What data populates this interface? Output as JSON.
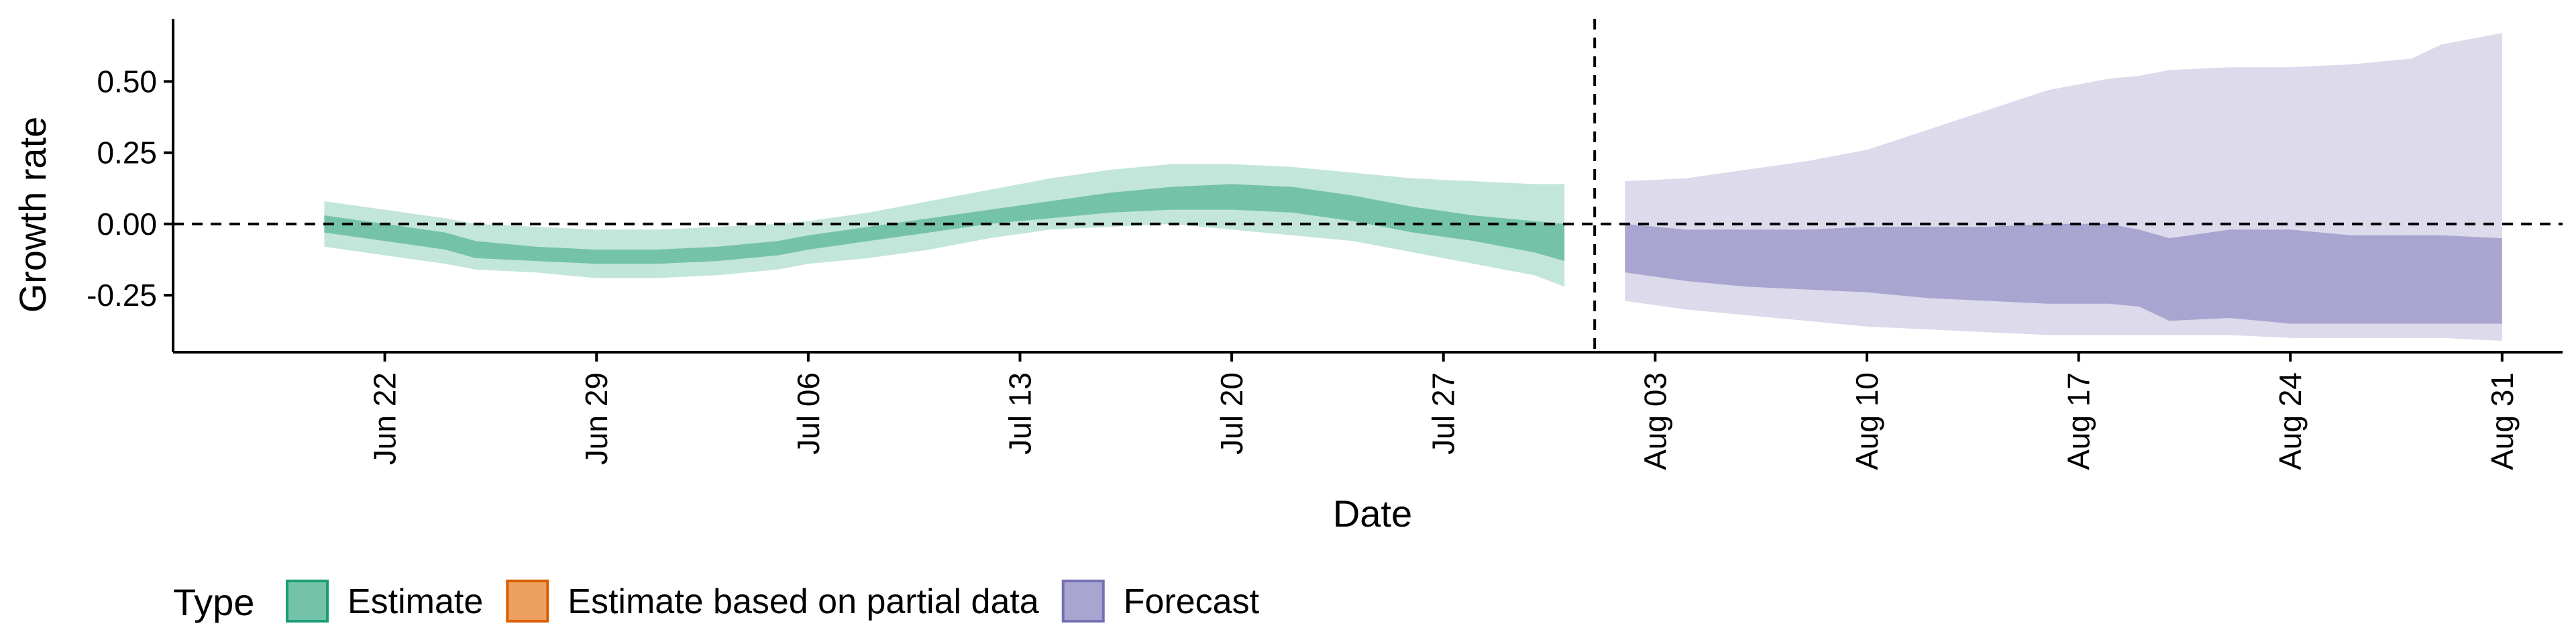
{
  "chart_data": {
    "type": "area",
    "xlabel": "Date",
    "ylabel": "Growth rate",
    "ylim": [
      -0.45,
      0.72
    ],
    "xlim": [
      "2020-06-15",
      "2020-09-02"
    ],
    "grid": false,
    "legend_position": "bottom-left",
    "legend_title": "Type",
    "y_ticks": [
      {
        "value": -0.25,
        "label": "-0.25"
      },
      {
        "value": 0,
        "label": "0.00"
      },
      {
        "value": 0.25,
        "label": "0.25"
      },
      {
        "value": 0.5,
        "label": "0.50"
      }
    ],
    "x_ticks": [
      {
        "date": "2020-06-22",
        "label": "Jun 22"
      },
      {
        "date": "2020-06-29",
        "label": "Jun 29"
      },
      {
        "date": "2020-07-06",
        "label": "Jul 06"
      },
      {
        "date": "2020-07-13",
        "label": "Jul 13"
      },
      {
        "date": "2020-07-20",
        "label": "Jul 20"
      },
      {
        "date": "2020-07-27",
        "label": "Jul 27"
      },
      {
        "date": "2020-08-03",
        "label": "Aug 03"
      },
      {
        "date": "2020-08-10",
        "label": "Aug 10"
      },
      {
        "date": "2020-08-17",
        "label": "Aug 17"
      },
      {
        "date": "2020-08-24",
        "label": "Aug 24"
      },
      {
        "date": "2020-08-31",
        "label": "Aug 31"
      }
    ],
    "reference_lines": {
      "horizontal_y": 0,
      "vertical_date": "2020-08-01"
    },
    "legend": [
      {
        "label": "Estimate",
        "fill": "#74c3a8",
        "stroke": "#1b9e77"
      },
      {
        "label": "Estimate based on partial data",
        "fill": "#eea061",
        "stroke": "#d95f02"
      },
      {
        "label": "Forecast",
        "fill": "#a9a5d1",
        "stroke": "#7570b3"
      }
    ],
    "series": [
      {
        "type_label": "Estimate",
        "outer_color": "#c3e6da",
        "inner_color": "#74c3a8",
        "x": [
          "2020-06-20",
          "2020-06-22",
          "2020-06-24",
          "2020-06-25",
          "2020-06-27",
          "2020-06-29",
          "2020-07-01",
          "2020-07-03",
          "2020-07-05",
          "2020-07-06",
          "2020-07-08",
          "2020-07-10",
          "2020-07-12",
          "2020-07-14",
          "2020-07-16",
          "2020-07-18",
          "2020-07-20",
          "2020-07-22",
          "2020-07-24",
          "2020-07-26",
          "2020-07-28",
          "2020-07-30",
          "2020-07-31"
        ],
        "lower90": [
          -0.08,
          -0.11,
          -0.14,
          -0.16,
          -0.17,
          -0.19,
          -0.19,
          -0.18,
          -0.16,
          -0.14,
          -0.12,
          -0.09,
          -0.05,
          -0.02,
          -0.01,
          0.0,
          -0.02,
          -0.04,
          -0.06,
          -0.1,
          -0.14,
          -0.18,
          -0.22
        ],
        "lower50": [
          -0.03,
          -0.06,
          -0.09,
          -0.12,
          -0.13,
          -0.14,
          -0.14,
          -0.13,
          -0.11,
          -0.09,
          -0.06,
          -0.03,
          0.0,
          0.02,
          0.04,
          0.05,
          0.05,
          0.04,
          0.01,
          -0.03,
          -0.06,
          -0.1,
          -0.13
        ],
        "upper50": [
          0.03,
          0.0,
          -0.03,
          -0.06,
          -0.08,
          -0.09,
          -0.09,
          -0.08,
          -0.06,
          -0.04,
          -0.01,
          0.02,
          0.05,
          0.08,
          0.11,
          0.13,
          0.14,
          0.13,
          0.1,
          0.06,
          0.03,
          0.01,
          0.0
        ],
        "upper90": [
          0.08,
          0.05,
          0.02,
          0.0,
          -0.01,
          -0.02,
          -0.02,
          -0.01,
          0.0,
          0.01,
          0.04,
          0.08,
          0.12,
          0.16,
          0.19,
          0.21,
          0.21,
          0.2,
          0.18,
          0.16,
          0.15,
          0.14,
          0.14
        ]
      },
      {
        "type_label": "Forecast",
        "outer_color": "#dcdaeb",
        "inner_color": "#a9a5d1",
        "x": [
          "2020-08-02",
          "2020-08-04",
          "2020-08-06",
          "2020-08-08",
          "2020-08-10",
          "2020-08-12",
          "2020-08-14",
          "2020-08-16",
          "2020-08-18",
          "2020-08-19",
          "2020-08-20",
          "2020-08-22",
          "2020-08-24",
          "2020-08-26",
          "2020-08-28",
          "2020-08-29",
          "2020-08-31"
        ],
        "lower90": [
          -0.27,
          -0.3,
          -0.32,
          -0.34,
          -0.36,
          -0.37,
          -0.38,
          -0.39,
          -0.39,
          -0.39,
          -0.39,
          -0.39,
          -0.4,
          -0.4,
          -0.4,
          -0.4,
          -0.41
        ],
        "lower50": [
          -0.17,
          -0.2,
          -0.22,
          -0.23,
          -0.24,
          -0.26,
          -0.27,
          -0.28,
          -0.28,
          -0.29,
          -0.34,
          -0.33,
          -0.35,
          -0.35,
          -0.35,
          -0.35,
          -0.35
        ],
        "upper50": [
          0.0,
          -0.02,
          -0.02,
          -0.02,
          -0.01,
          -0.01,
          -0.01,
          0.0,
          0.0,
          -0.02,
          -0.05,
          -0.02,
          -0.02,
          -0.04,
          -0.04,
          -0.04,
          -0.05
        ],
        "upper90": [
          0.15,
          0.16,
          0.19,
          0.22,
          0.26,
          0.33,
          0.4,
          0.47,
          0.51,
          0.52,
          0.54,
          0.55,
          0.55,
          0.56,
          0.58,
          0.63,
          0.67
        ]
      }
    ]
  }
}
